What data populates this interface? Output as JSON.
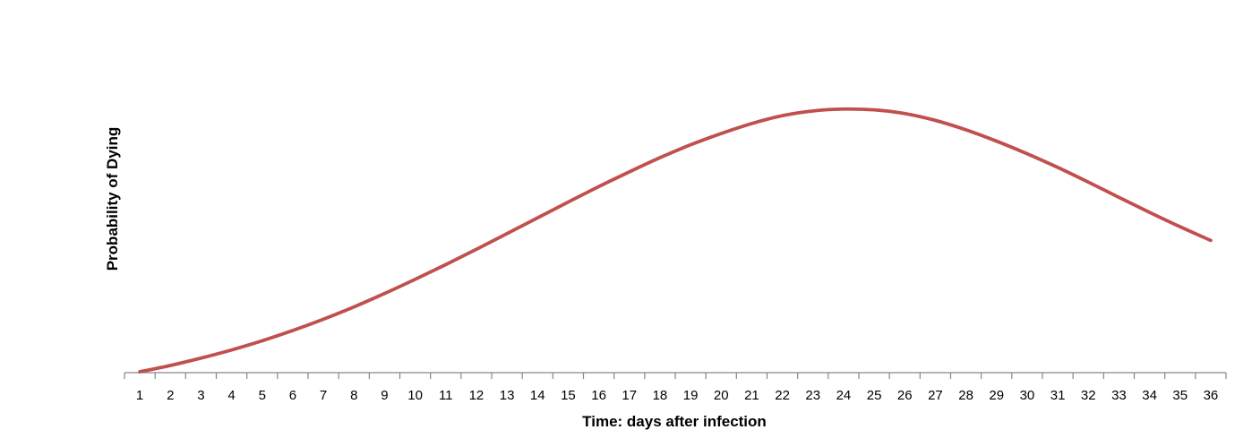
{
  "chart_data": {
    "type": "line",
    "title": "",
    "xlabel": "Time: days after infection",
    "ylabel": "Probability  of Dying",
    "x": [
      1,
      2,
      3,
      4,
      5,
      6,
      7,
      8,
      9,
      10,
      11,
      12,
      13,
      14,
      15,
      16,
      17,
      18,
      19,
      20,
      21,
      22,
      23,
      24,
      25,
      26,
      27,
      28,
      29,
      30,
      31,
      32,
      33,
      34,
      35,
      36
    ],
    "categories": [
      "1",
      "2",
      "3",
      "4",
      "5",
      "6",
      "7",
      "8",
      "9",
      "10",
      "11",
      "12",
      "13",
      "14",
      "15",
      "16",
      "17",
      "18",
      "19",
      "20",
      "21",
      "22",
      "23",
      "24",
      "25",
      "26",
      "27",
      "28",
      "29",
      "30",
      "31",
      "32",
      "33",
      "34",
      "35",
      "36"
    ],
    "series": [
      {
        "color": "#c0504d",
        "values": [
          0.0,
          0.024,
          0.052,
          0.083,
          0.118,
          0.157,
          0.2,
          0.247,
          0.298,
          0.352,
          0.408,
          0.466,
          0.526,
          0.586,
          0.646,
          0.705,
          0.761,
          0.815,
          0.864,
          0.907,
          0.945,
          0.975,
          0.993,
          1.0,
          0.997,
          0.983,
          0.957,
          0.921,
          0.878,
          0.83,
          0.778,
          0.722,
          0.664,
          0.607,
          0.552,
          0.5
        ]
      }
    ],
    "ylim": [
      0,
      1.18
    ],
    "y_ticks_shown": false,
    "grid": false,
    "legend": "none"
  }
}
